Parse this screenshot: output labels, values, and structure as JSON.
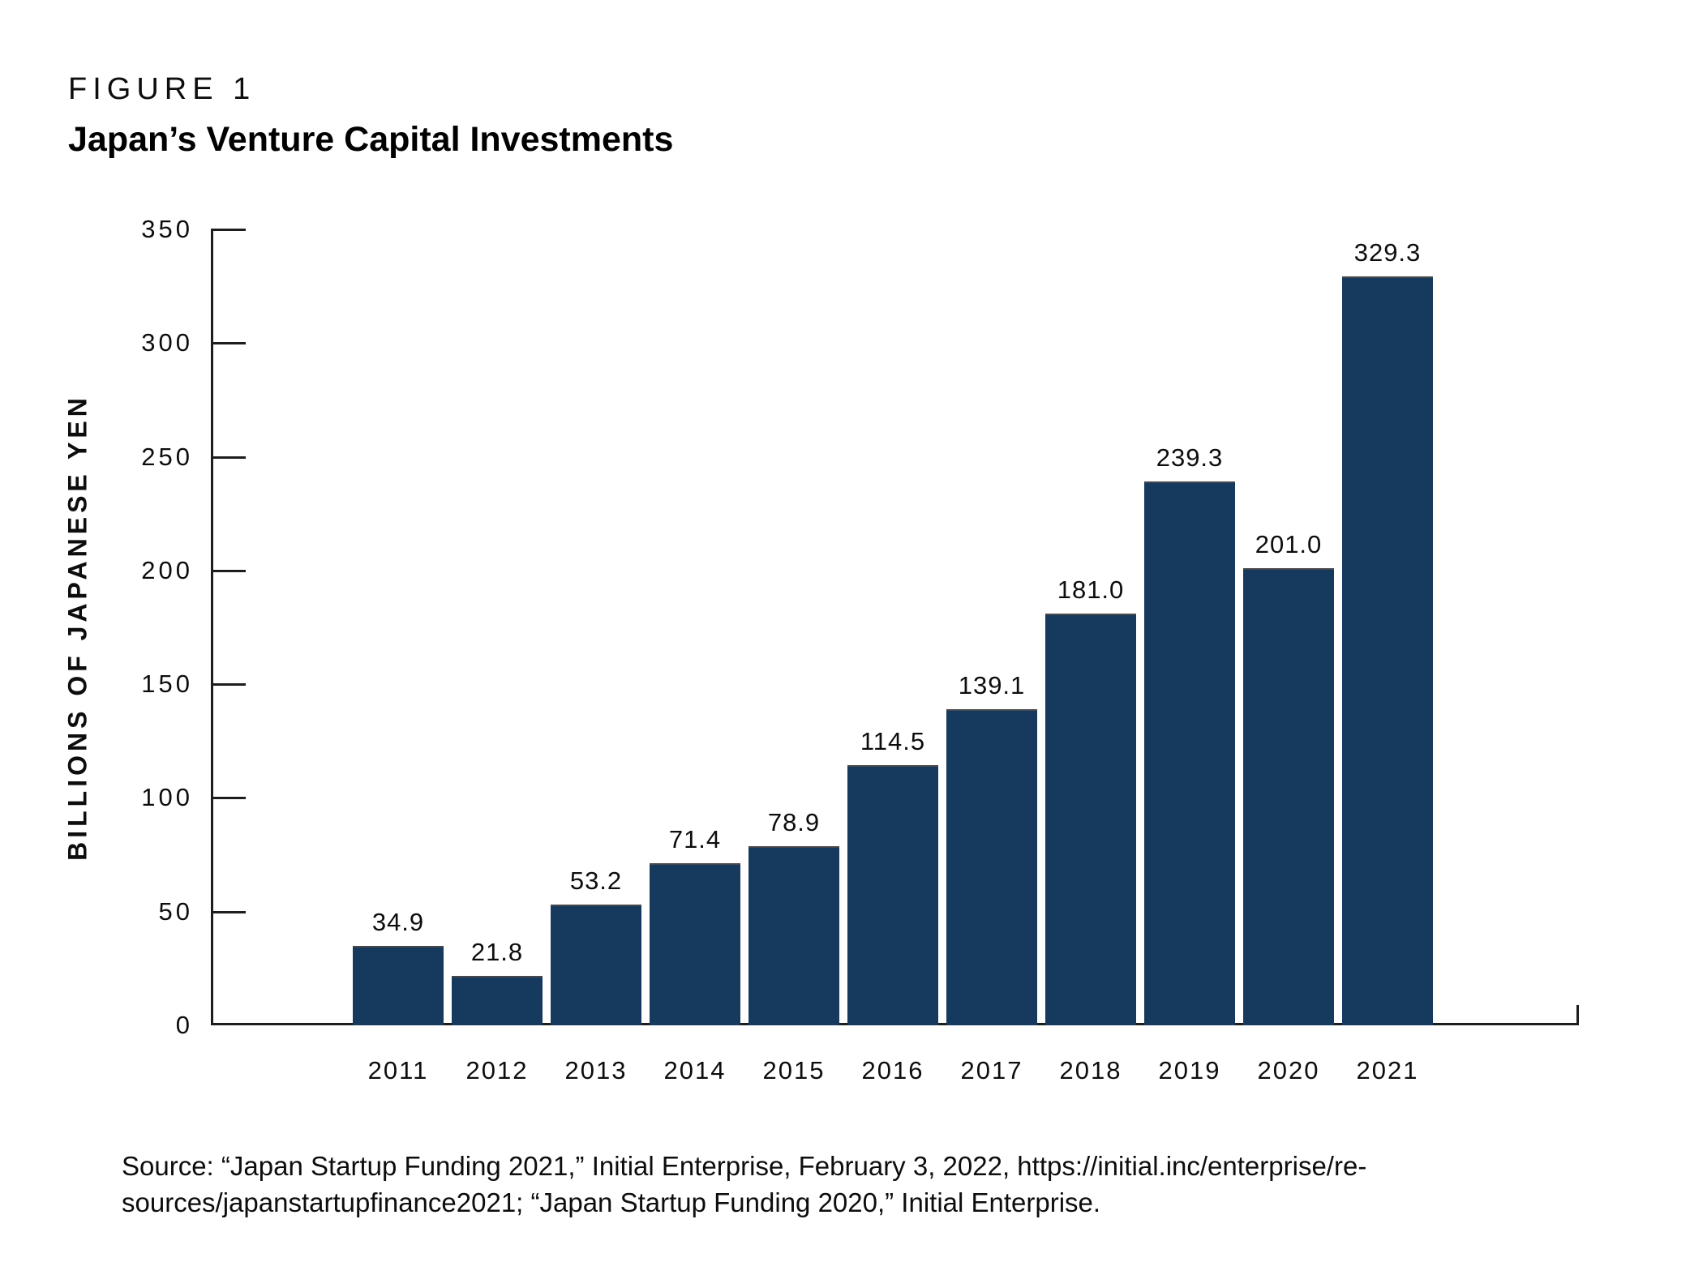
{
  "figure": {
    "label": "FIGURE 1",
    "title": "Japan’s Venture Capital Investments"
  },
  "chart_data": {
    "type": "bar",
    "title": "Japan’s Venture Capital Investments",
    "categories": [
      "2011",
      "2012",
      "2013",
      "2014",
      "2015",
      "2016",
      "2017",
      "2018",
      "2019",
      "2020",
      "2021"
    ],
    "values": [
      34.9,
      21.8,
      53.2,
      71.4,
      78.9,
      114.5,
      139.1,
      181.0,
      239.3,
      201.0,
      329.3
    ],
    "value_labels": [
      "34.9",
      "21.8",
      "53.2",
      "71.4",
      "78.9",
      "114.5",
      "139.1",
      "181.0",
      "239.3",
      "201.0",
      "329.3"
    ],
    "xlabel": "",
    "ylabel": "BILLIONS OF JAPANESE YEN",
    "ylim": [
      0,
      350
    ],
    "yticks": [
      0,
      50,
      100,
      150,
      200,
      250,
      300,
      350
    ],
    "grid": false,
    "legend": "none",
    "bar_color": "#163a5e",
    "axis_color": "#1d1d1b"
  },
  "source": {
    "line1": "Source: “Japan Startup Funding 2021,” Initial Enterprise, February 3, 2022, https://initial.inc/enterprise/re-",
    "line2": "sources/japanstartupfinance2021; “Japan Startup Funding 2020,” Initial Enterprise."
  }
}
